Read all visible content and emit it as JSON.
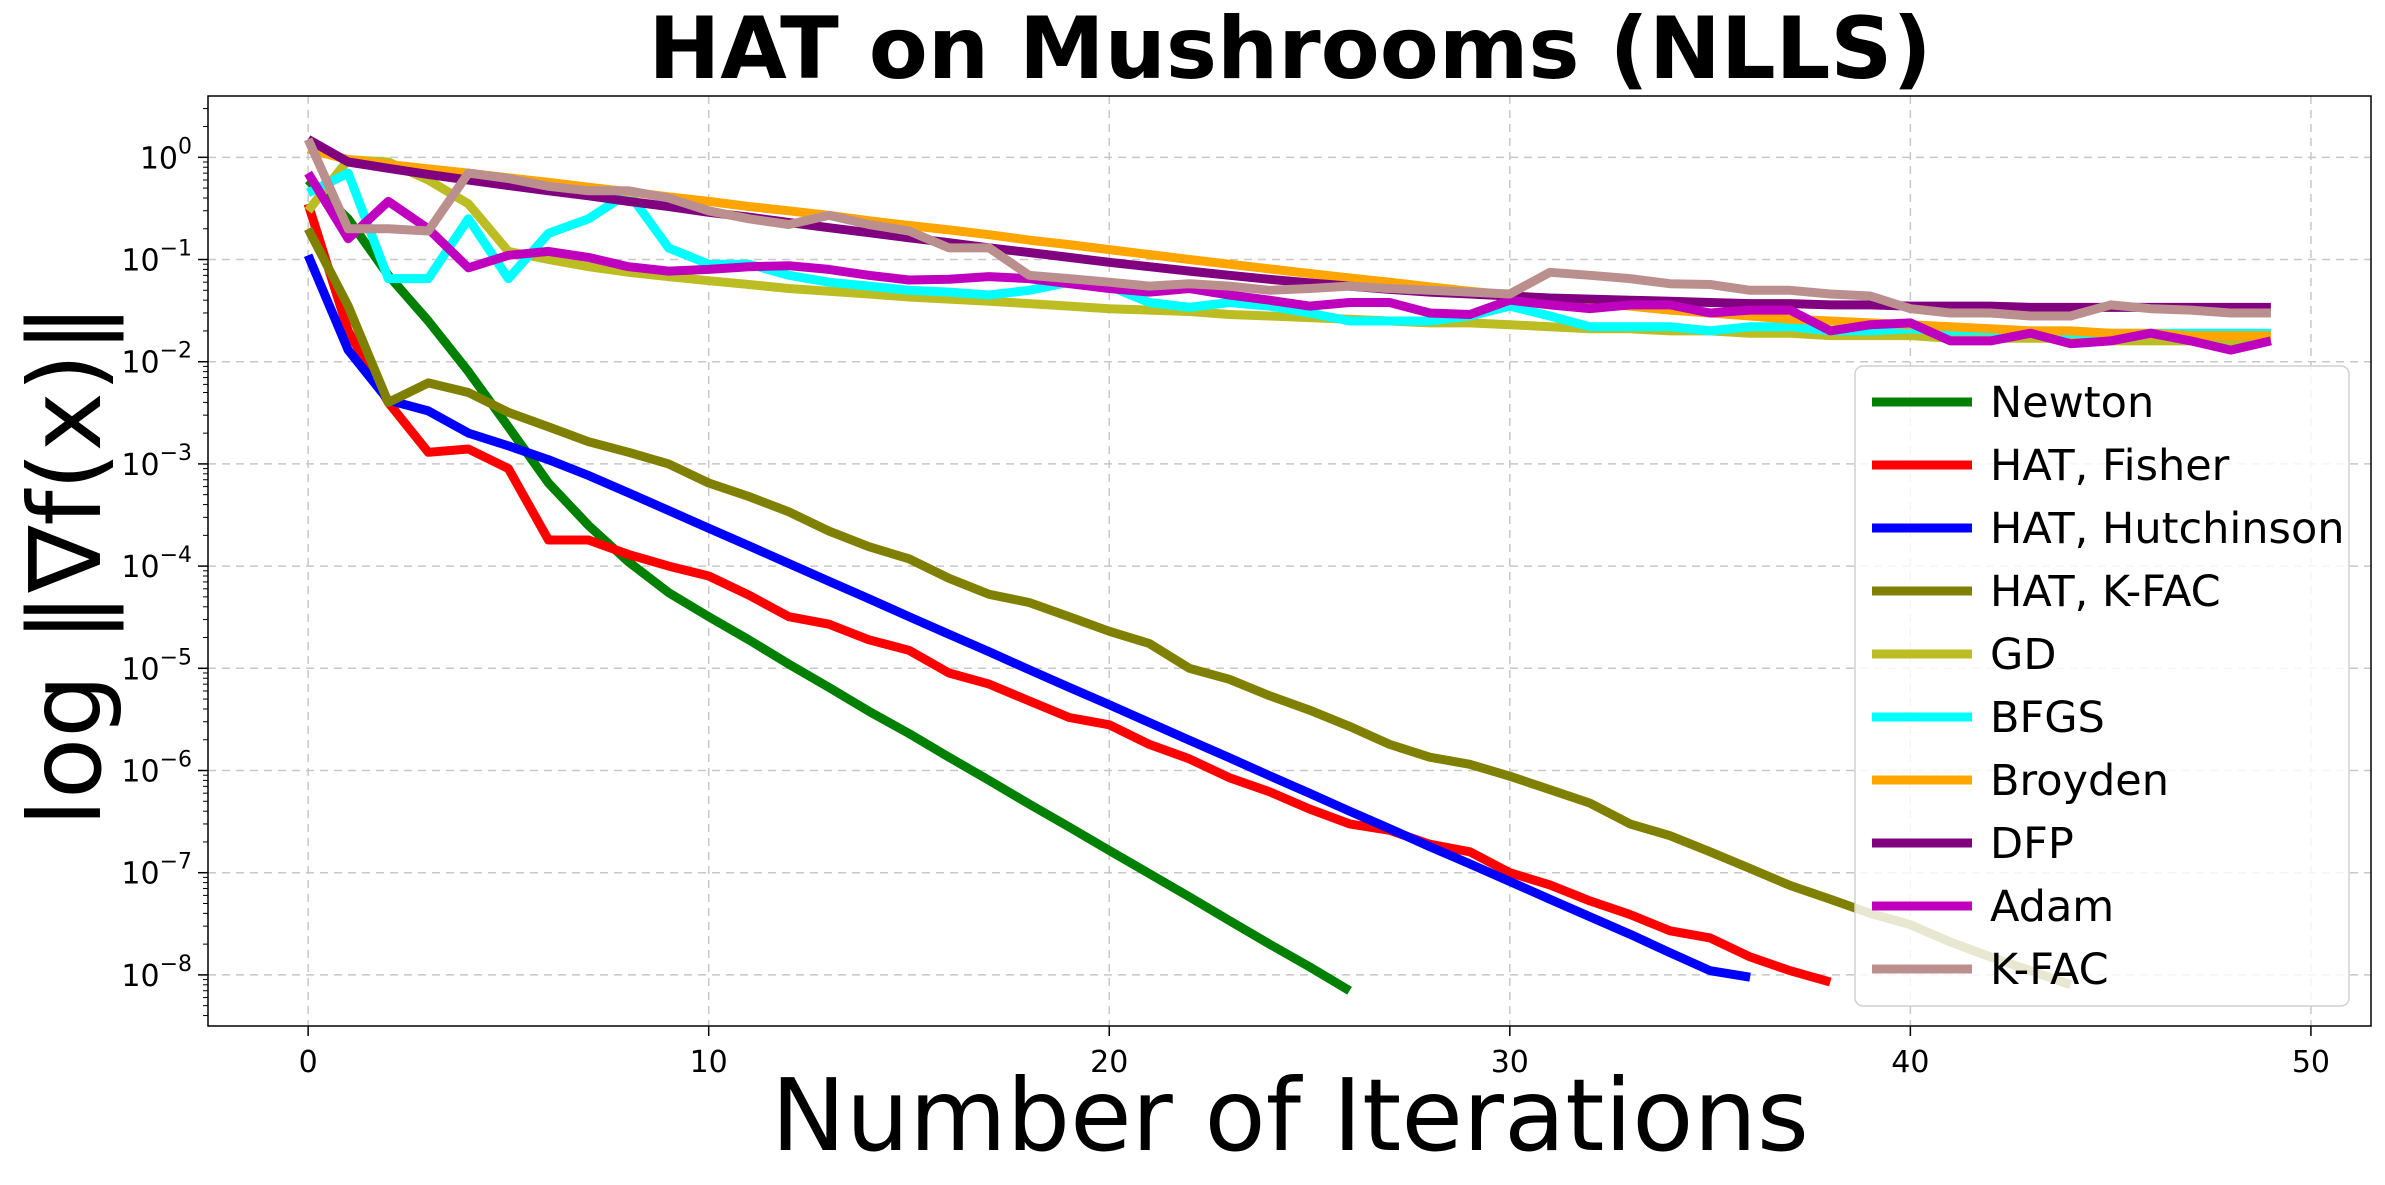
{
  "chart_data": {
    "type": "line",
    "title": "HAT on Mushrooms (NLLS)",
    "xlabel": "Number of Iterations",
    "ylabel": "log ‖∇f(x)‖",
    "xlim": [
      -2.5,
      51.5
    ],
    "ylim_log10": [
      -8.5,
      0.6
    ],
    "y_scale": "log",
    "grid": true,
    "legend_position": "lower-right",
    "xticks": [
      0,
      10,
      20,
      30,
      40,
      50
    ],
    "xtick_labels": [
      "0",
      "10",
      "20",
      "30",
      "40",
      "50"
    ],
    "yticks_log10": [
      0,
      -1,
      -2,
      -3,
      -4,
      -5,
      -6,
      -7,
      -8
    ],
    "ytick_labels": [
      "10",
      "10",
      "10",
      "10",
      "10",
      "10",
      "10",
      "10",
      "10"
    ],
    "ytick_exponents": [
      "0",
      "−1",
      "−2",
      "−3",
      "−4",
      "−5",
      "−6",
      "−7",
      "−8"
    ],
    "series": [
      {
        "name": "Newton",
        "color": "#008000",
        "y": [
          0.6,
          0.25,
          0.07,
          0.025,
          0.008,
          0.0023,
          0.00065,
          0.00025,
          0.00011,
          5.5e-05,
          3.2e-05,
          1.9e-05,
          1.1e-05,
          6.5e-06,
          3.8e-06,
          2.3e-06,
          1.35e-06,
          8e-07,
          4.7e-07,
          2.8e-07,
          1.65e-07,
          9.8e-08,
          5.8e-08,
          3.4e-08,
          2e-08,
          1.2e-08,
          7e-09
        ]
      },
      {
        "name": "HAT, Fisher",
        "color": "#ff0000",
        "y": [
          0.35,
          0.02,
          0.004,
          0.0013,
          0.0014,
          0.0009,
          0.00018,
          0.00018,
          0.00013,
          0.0001,
          8e-05,
          5.2e-05,
          3.2e-05,
          2.7e-05,
          1.9e-05,
          1.5e-05,
          9e-06,
          7e-06,
          4.8e-06,
          3.3e-06,
          2.8e-06,
          1.8e-06,
          1.3e-06,
          8.5e-07,
          6.2e-07,
          4.2e-07,
          3e-07,
          2.6e-07,
          1.9e-07,
          1.6e-07,
          1e-07,
          7.6e-08,
          5.3e-08,
          3.9e-08,
          2.7e-08,
          2.3e-08,
          1.5e-08,
          1.1e-08,
          8.5e-09
        ]
      },
      {
        "name": "HAT, Hutchinson",
        "color": "#0000ff",
        "y": [
          0.11,
          0.013,
          0.0042,
          0.0033,
          0.002,
          0.0015,
          0.0011,
          0.00077,
          0.00052,
          0.00035,
          0.000235,
          0.000158,
          0.000106,
          7.1e-05,
          4.8e-05,
          3.2e-05,
          2.15e-05,
          1.45e-05,
          9.7e-06,
          6.5e-06,
          4.4e-06,
          2.95e-06,
          1.98e-06,
          1.33e-06,
          8.9e-07,
          6e-07,
          4e-07,
          2.7e-07,
          1.8e-07,
          1.22e-07,
          8.2e-08,
          5.5e-08,
          3.7e-08,
          2.5e-08,
          1.65e-08,
          1.1e-08,
          9.5e-09
        ]
      },
      {
        "name": "HAT, K-FAC",
        "color": "#808000",
        "y": [
          0.2,
          0.035,
          0.004,
          0.0062,
          0.005,
          0.0032,
          0.0023,
          0.00165,
          0.0013,
          0.001,
          0.00065,
          0.00048,
          0.00034,
          0.00022,
          0.000155,
          0.000118,
          7.6e-05,
          5.3e-05,
          4.4e-05,
          3.2e-05,
          2.3e-05,
          1.75e-05,
          1e-05,
          7.8e-06,
          5.4e-06,
          3.9e-06,
          2.7e-06,
          1.8e-06,
          1.35e-06,
          1.15e-06,
          8.8e-07,
          6.5e-07,
          4.8e-07,
          3e-07,
          2.3e-07,
          1.6e-07,
          1.1e-07,
          7.5e-08,
          5.5e-08,
          4e-08,
          3.1e-08,
          2.1e-08,
          1.5e-08,
          1.1e-08,
          8e-09
        ]
      },
      {
        "name": "GD",
        "color": "#bcbd22",
        "y": [
          0.3,
          0.95,
          0.9,
          0.6,
          0.35,
          0.12,
          0.1,
          0.085,
          0.075,
          0.068,
          0.062,
          0.057,
          0.052,
          0.049,
          0.046,
          0.043,
          0.041,
          0.039,
          0.037,
          0.035,
          0.033,
          0.032,
          0.031,
          0.029,
          0.028,
          0.027,
          0.026,
          0.025,
          0.024,
          0.024,
          0.023,
          0.022,
          0.021,
          0.021,
          0.02,
          0.02,
          0.019,
          0.019,
          0.018,
          0.018,
          0.018,
          0.017,
          0.017,
          0.017,
          0.017,
          0.016,
          0.016,
          0.016,
          0.016,
          0.016
        ]
      },
      {
        "name": "BFGS",
        "color": "#00ffff",
        "y": [
          0.45,
          0.7,
          0.065,
          0.065,
          0.25,
          0.065,
          0.18,
          0.25,
          0.45,
          0.13,
          0.09,
          0.09,
          0.07,
          0.06,
          0.055,
          0.05,
          0.048,
          0.045,
          0.05,
          0.06,
          0.055,
          0.038,
          0.034,
          0.038,
          0.035,
          0.03,
          0.025,
          0.025,
          0.025,
          0.028,
          0.035,
          0.028,
          0.022,
          0.022,
          0.022,
          0.02,
          0.022,
          0.022,
          0.02,
          0.02,
          0.021,
          0.02,
          0.02,
          0.019,
          0.019,
          0.019,
          0.019,
          0.019,
          0.019,
          0.019
        ]
      },
      {
        "name": "Broyden",
        "color": "#ffa500",
        "y": [
          1.2,
          0.95,
          0.85,
          0.77,
          0.7,
          0.63,
          0.57,
          0.51,
          0.46,
          0.41,
          0.37,
          0.33,
          0.3,
          0.27,
          0.24,
          0.215,
          0.195,
          0.175,
          0.155,
          0.14,
          0.125,
          0.112,
          0.1,
          0.09,
          0.081,
          0.073,
          0.066,
          0.06,
          0.054,
          0.049,
          0.045,
          0.041,
          0.038,
          0.035,
          0.032,
          0.03,
          0.028,
          0.026,
          0.025,
          0.024,
          0.023,
          0.022,
          0.021,
          0.02,
          0.02,
          0.019,
          0.019,
          0.018,
          0.018,
          0.018
        ]
      },
      {
        "name": "DFP",
        "color": "#800080",
        "y": [
          1.5,
          0.9,
          0.78,
          0.68,
          0.6,
          0.53,
          0.47,
          0.42,
          0.37,
          0.33,
          0.29,
          0.26,
          0.23,
          0.205,
          0.183,
          0.163,
          0.146,
          0.13,
          0.117,
          0.105,
          0.094,
          0.085,
          0.077,
          0.07,
          0.064,
          0.059,
          0.055,
          0.051,
          0.048,
          0.046,
          0.044,
          0.042,
          0.041,
          0.04,
          0.039,
          0.038,
          0.037,
          0.037,
          0.036,
          0.036,
          0.035,
          0.035,
          0.035,
          0.034,
          0.034,
          0.034,
          0.034,
          0.034,
          0.034,
          0.034
        ]
      },
      {
        "name": "Adam",
        "color": "#bf00bf",
        "y": [
          0.7,
          0.16,
          0.37,
          0.2,
          0.083,
          0.11,
          0.12,
          0.105,
          0.085,
          0.077,
          0.08,
          0.085,
          0.087,
          0.08,
          0.07,
          0.063,
          0.064,
          0.068,
          0.065,
          0.058,
          0.052,
          0.048,
          0.052,
          0.045,
          0.04,
          0.035,
          0.038,
          0.038,
          0.03,
          0.029,
          0.04,
          0.036,
          0.033,
          0.036,
          0.036,
          0.03,
          0.032,
          0.032,
          0.02,
          0.023,
          0.024,
          0.016,
          0.016,
          0.019,
          0.015,
          0.016,
          0.019,
          0.016,
          0.013,
          0.016
        ]
      },
      {
        "name": "K-FAC",
        "color": "#bc8f8f",
        "y": [
          1.5,
          0.2,
          0.2,
          0.19,
          0.7,
          0.62,
          0.52,
          0.47,
          0.47,
          0.4,
          0.3,
          0.25,
          0.22,
          0.27,
          0.22,
          0.19,
          0.13,
          0.13,
          0.07,
          0.065,
          0.06,
          0.055,
          0.058,
          0.055,
          0.05,
          0.052,
          0.055,
          0.052,
          0.05,
          0.048,
          0.046,
          0.075,
          0.07,
          0.065,
          0.058,
          0.057,
          0.05,
          0.05,
          0.046,
          0.044,
          0.033,
          0.03,
          0.03,
          0.028,
          0.028,
          0.036,
          0.033,
          0.032,
          0.03,
          0.03
        ]
      }
    ]
  }
}
